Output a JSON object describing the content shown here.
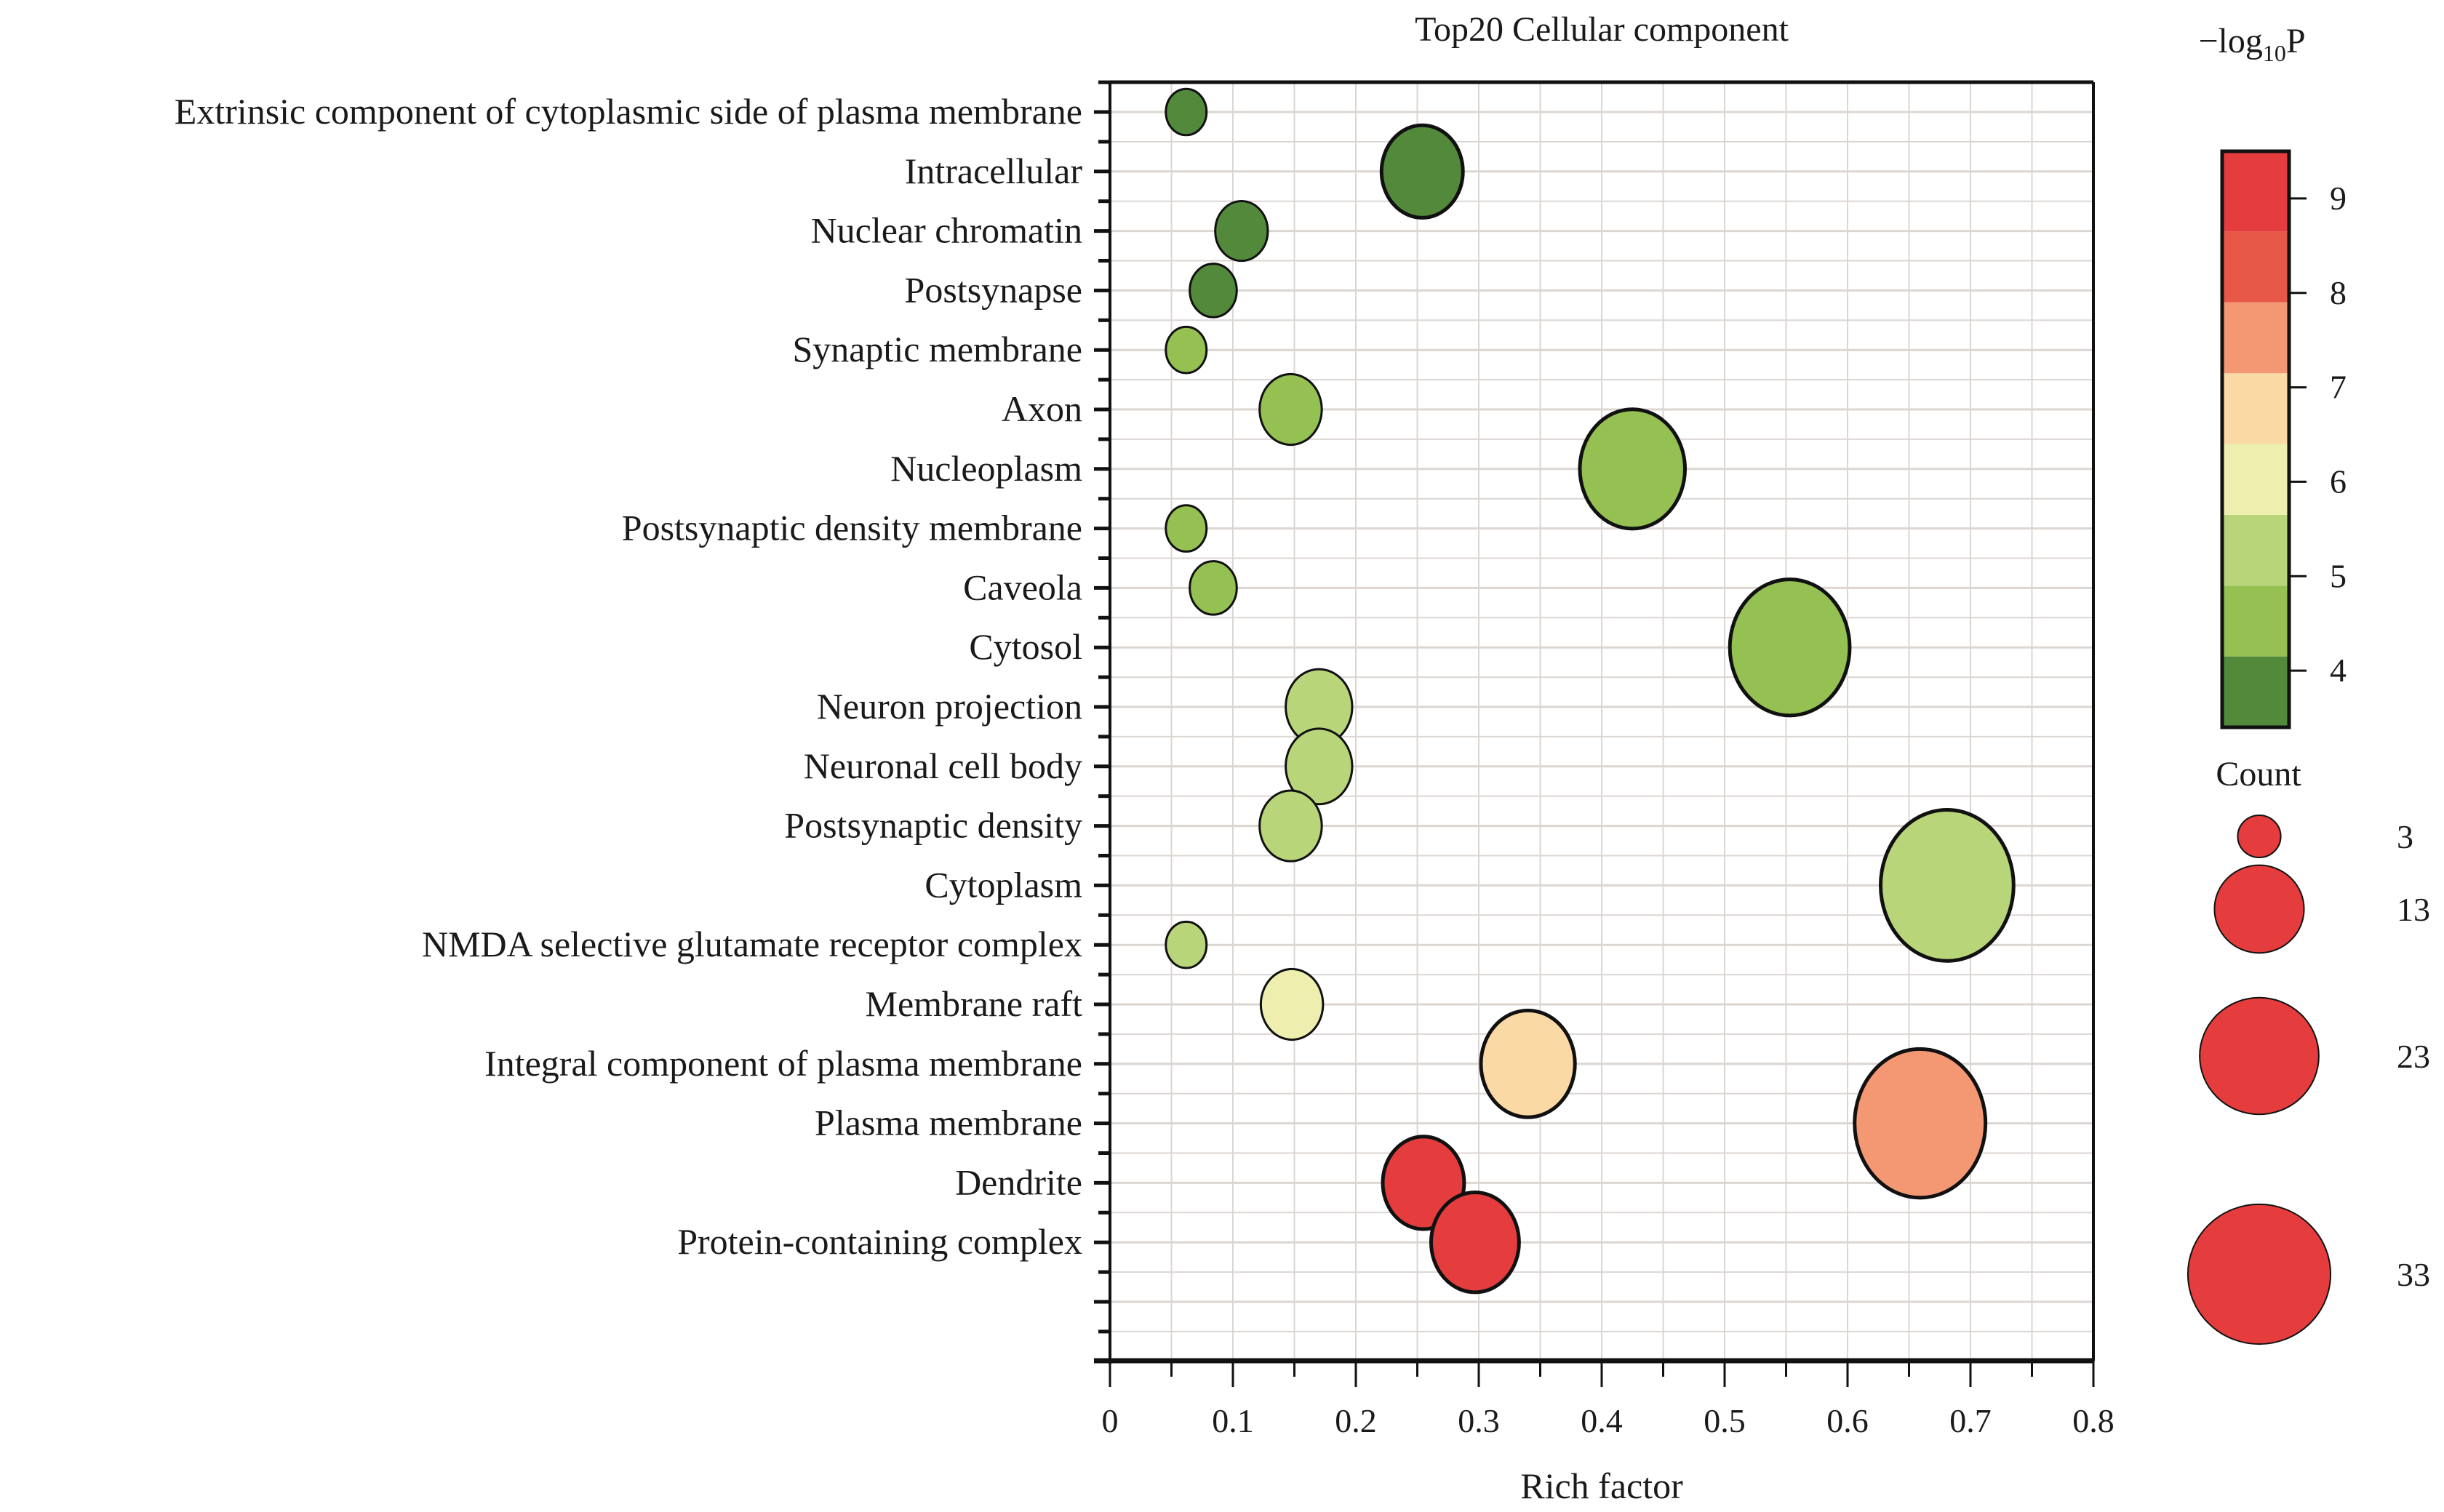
{
  "chart_data": {
    "type": "scatter",
    "subtype": "bubble",
    "title": "Top20 Cellular component",
    "xlabel": "Rich factor",
    "ylabel": "",
    "xlim": [
      0,
      0.8
    ],
    "xticks": [
      "0",
      "0.1",
      "0.2",
      "0.3",
      "0.4",
      "0.5",
      "0.6",
      "0.7",
      "0.8"
    ],
    "grid": true,
    "categories": [
      "Extrinsic component of cytoplasmic side of plasma membrane",
      "Intracellular",
      "Nuclear chromatin",
      "Postsynapse",
      "Synaptic membrane",
      "Axon",
      "Nucleoplasm",
      "Postsynaptic density membrane",
      "Caveola",
      "Cytosol",
      "Neuron projection",
      "Neuronal cell body",
      "Postsynaptic density",
      "Cytoplasm",
      "NMDA selective glutamate receptor complex",
      "Membrane raft",
      "Integral component of plasma membrane",
      "Plasma membrane",
      "Dendrite",
      "Protein-containing complex"
    ],
    "points": [
      {
        "term": "Extrinsic component of cytoplasmic side of plasma membrane",
        "rich_factor": 0.062,
        "count": 3,
        "neg_log10_p": 3.8
      },
      {
        "term": "Intracellular",
        "rich_factor": 0.254,
        "count": 12,
        "neg_log10_p": 3.8
      },
      {
        "term": "Nuclear chromatin",
        "rich_factor": 0.107,
        "count": 5,
        "neg_log10_p": 3.8
      },
      {
        "term": "Postsynapse",
        "rich_factor": 0.084,
        "count": 4,
        "neg_log10_p": 3.8
      },
      {
        "term": "Synaptic membrane",
        "rich_factor": 0.062,
        "count": 3,
        "neg_log10_p": 4.5
      },
      {
        "term": "Axon",
        "rich_factor": 0.147,
        "count": 7,
        "neg_log10_p": 4.5
      },
      {
        "term": "Nucleoplasm",
        "rich_factor": 0.425,
        "count": 20,
        "neg_log10_p": 4.5
      },
      {
        "term": "Postsynaptic density membrane",
        "rich_factor": 0.062,
        "count": 3,
        "neg_log10_p": 4.5
      },
      {
        "term": "Caveola",
        "rich_factor": 0.084,
        "count": 4,
        "neg_log10_p": 4.5
      },
      {
        "term": "Cytosol",
        "rich_factor": 0.553,
        "count": 26,
        "neg_log10_p": 4.5
      },
      {
        "term": "Neuron projection",
        "rich_factor": 0.17,
        "count": 8,
        "neg_log10_p": 5.2
      },
      {
        "term": "Neuronal cell body",
        "rich_factor": 0.17,
        "count": 8,
        "neg_log10_p": 5.2
      },
      {
        "term": "Postsynaptic density",
        "rich_factor": 0.147,
        "count": 7,
        "neg_log10_p": 5.2
      },
      {
        "term": "Cytoplasm",
        "rich_factor": 0.681,
        "count": 32,
        "neg_log10_p": 5.2
      },
      {
        "term": "NMDA selective glutamate receptor complex",
        "rich_factor": 0.062,
        "count": 3,
        "neg_log10_p": 5.2
      },
      {
        "term": "Membrane raft",
        "rich_factor": 0.148,
        "count": 7,
        "neg_log10_p": 6.0
      },
      {
        "term": "Integral component of plasma membrane",
        "rich_factor": 0.34,
        "count": 16,
        "neg_log10_p": 6.8
      },
      {
        "term": "Plasma membrane",
        "rich_factor": 0.659,
        "count": 31,
        "neg_log10_p": 7.5
      },
      {
        "term": "Dendrite",
        "rich_factor": 0.255,
        "count": 12,
        "neg_log10_p": 9.0
      },
      {
        "term": "Protein-containing complex",
        "rich_factor": 0.297,
        "count": 14,
        "neg_log10_p": 9.0
      }
    ],
    "color_legend": {
      "title_main": "−log",
      "title_sub": "10",
      "title_end": "P",
      "range": [
        3.4,
        9.5
      ],
      "ticks": [
        "4",
        "5",
        "6",
        "7",
        "8",
        "9"
      ],
      "bands": [
        {
          "from": 3.4,
          "to": 4.15,
          "color": "#52893b"
        },
        {
          "from": 4.15,
          "to": 4.9,
          "color": "#95c052"
        },
        {
          "from": 4.9,
          "to": 5.65,
          "color": "#b9d579"
        },
        {
          "from": 5.65,
          "to": 6.4,
          "color": "#eeefae"
        },
        {
          "from": 6.4,
          "to": 7.15,
          "color": "#fad9a4"
        },
        {
          "from": 7.15,
          "to": 7.9,
          "color": "#f39873"
        },
        {
          "from": 7.9,
          "to": 8.65,
          "color": "#e85847"
        },
        {
          "from": 8.65,
          "to": 9.5,
          "color": "#e53c3d"
        }
      ]
    },
    "size_legend": {
      "title": "Count",
      "values": [
        3,
        13,
        23,
        33
      ],
      "labels": [
        "3",
        "13",
        "23",
        "33"
      ],
      "color": "#e53c3d"
    }
  }
}
